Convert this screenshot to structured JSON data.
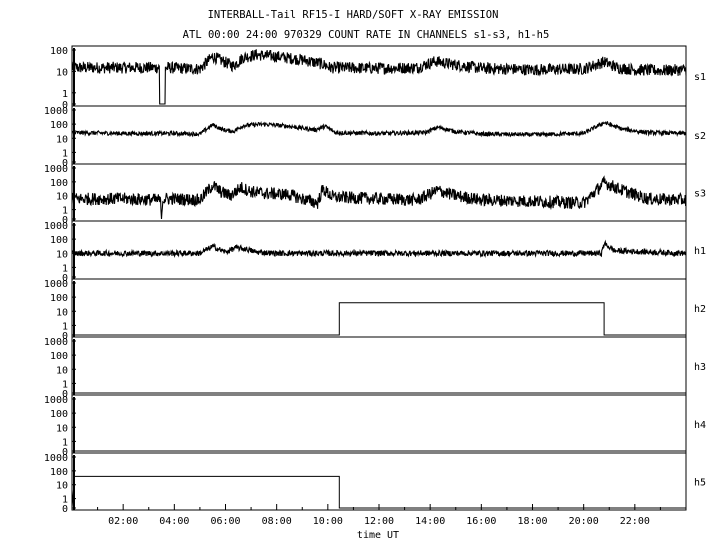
{
  "chart_data": {
    "type": "line",
    "title": "INTERBALL-Tail RF15-I HARD/SOFT X-RAY EMISSION",
    "subtitle": "ATL 00:00 24:00 970329  COUNT RATE IN CHANNELS s1-s3, h1-h5",
    "xlabel": "time UT",
    "xlim": [
      0,
      24
    ],
    "x_tick_labels": [
      "02:00",
      "04:00",
      "06:00",
      "08:00",
      "10:00",
      "12:00",
      "14:00",
      "16:00",
      "18:00",
      "20:00",
      "22:00"
    ],
    "x_ticks_hours": [
      2,
      4,
      6,
      8,
      10,
      12,
      14,
      16,
      18,
      20,
      22
    ],
    "y_scale": "log",
    "grid": false,
    "panels": [
      {
        "name": "s1",
        "y_tick_labels": [
          "100",
          "10",
          "1",
          "0"
        ],
        "ylim_decades": 2,
        "base": 15,
        "noise": 0.55,
        "points": [
          [
            0,
            15
          ],
          [
            3.4,
            15
          ],
          [
            3.45,
            0
          ],
          [
            3.62,
            0
          ],
          [
            3.65,
            15
          ],
          [
            5.0,
            13
          ],
          [
            5.5,
            50
          ],
          [
            5.9,
            30
          ],
          [
            6.3,
            18
          ],
          [
            6.7,
            45
          ],
          [
            7.2,
            60
          ],
          [
            8,
            50
          ],
          [
            9,
            35
          ],
          [
            9.8,
            22
          ],
          [
            10.1,
            15
          ],
          [
            12,
            14
          ],
          [
            13.5,
            15
          ],
          [
            14.2,
            30
          ],
          [
            14.8,
            22
          ],
          [
            16,
            14
          ],
          [
            18,
            12
          ],
          [
            20,
            13
          ],
          [
            20.8,
            28
          ],
          [
            21.3,
            15
          ],
          [
            22,
            12
          ],
          [
            23,
            11
          ],
          [
            24,
            12
          ]
        ]
      },
      {
        "name": "s2",
        "y_tick_labels": [
          "1000",
          "100",
          "10",
          "1",
          "0"
        ],
        "ylim_decades": 3,
        "base": 20,
        "noise": 0.3,
        "points": [
          [
            0,
            25
          ],
          [
            2,
            22
          ],
          [
            4,
            22
          ],
          [
            5,
            20
          ],
          [
            5.5,
            90
          ],
          [
            5.9,
            40
          ],
          [
            6.3,
            30
          ],
          [
            6.7,
            80
          ],
          [
            7.5,
            100
          ],
          [
            8.5,
            70
          ],
          [
            9.5,
            40
          ],
          [
            9.9,
            70
          ],
          [
            10.3,
            25
          ],
          [
            12,
            22
          ],
          [
            13.8,
            25
          ],
          [
            14.3,
            60
          ],
          [
            15,
            30
          ],
          [
            16,
            20
          ],
          [
            18,
            18
          ],
          [
            20,
            22
          ],
          [
            20.8,
            130
          ],
          [
            21.5,
            45
          ],
          [
            22.5,
            25
          ],
          [
            24,
            22
          ]
        ]
      },
      {
        "name": "s3",
        "y_tick_labels": [
          "1000",
          "100",
          "10",
          "1",
          "0"
        ],
        "ylim_decades": 3,
        "base": 6,
        "noise": 0.9,
        "points": [
          [
            0,
            6
          ],
          [
            2,
            6
          ],
          [
            3.45,
            5
          ],
          [
            3.5,
            0.2
          ],
          [
            3.55,
            6
          ],
          [
            4,
            6
          ],
          [
            5,
            5
          ],
          [
            5.5,
            60
          ],
          [
            5.8,
            20
          ],
          [
            6.2,
            10
          ],
          [
            6.6,
            40
          ],
          [
            7,
            20
          ],
          [
            7.5,
            15
          ],
          [
            8.5,
            12
          ],
          [
            9,
            6
          ],
          [
            9.6,
            3
          ],
          [
            9.8,
            30
          ],
          [
            10.2,
            8
          ],
          [
            12,
            6
          ],
          [
            13.5,
            5
          ],
          [
            14.3,
            25
          ],
          [
            15,
            10
          ],
          [
            16,
            5
          ],
          [
            18,
            4
          ],
          [
            20,
            3
          ],
          [
            20.8,
            90
          ],
          [
            21.5,
            25
          ],
          [
            22.5,
            6
          ],
          [
            24,
            5
          ]
        ]
      },
      {
        "name": "h1",
        "y_tick_labels": [
          "1000",
          "100",
          "10",
          "1",
          "0"
        ],
        "ylim_decades": 3,
        "base": 10,
        "noise": 0.4,
        "points": [
          [
            0,
            10
          ],
          [
            5,
            10
          ],
          [
            5.5,
            30
          ],
          [
            6,
            12
          ],
          [
            6.4,
            25
          ],
          [
            6.8,
            20
          ],
          [
            7.2,
            12
          ],
          [
            8,
            10
          ],
          [
            20.7,
            10
          ],
          [
            20.8,
            50
          ],
          [
            21.2,
            15
          ],
          [
            24,
            10
          ]
        ]
      },
      {
        "name": "h2",
        "y_tick_labels": [
          "1000",
          "100",
          "10",
          "1",
          "0"
        ],
        "ylim_decades": 3,
        "base": 0,
        "noise": 0,
        "points": [
          [
            0,
            0
          ],
          [
            10.45,
            0
          ],
          [
            10.45,
            40
          ],
          [
            20.8,
            40
          ],
          [
            20.8,
            0
          ],
          [
            24,
            0
          ]
        ]
      },
      {
        "name": "h3",
        "y_tick_labels": [
          "1000",
          "100",
          "10",
          "1",
          "0"
        ],
        "ylim_decades": 3,
        "base": 0,
        "noise": 0,
        "points": [
          [
            0,
            0
          ],
          [
            24,
            0
          ]
        ]
      },
      {
        "name": "h4",
        "y_tick_labels": [
          "1000",
          "100",
          "10",
          "1",
          "0"
        ],
        "ylim_decades": 3,
        "base": 0,
        "noise": 0,
        "points": [
          [
            0,
            0
          ],
          [
            24,
            0
          ]
        ]
      },
      {
        "name": "h5",
        "y_tick_labels": [
          "1000",
          "100",
          "10",
          "1",
          "0"
        ],
        "ylim_decades": 3,
        "base": 0,
        "noise": 0,
        "points": [
          [
            0,
            0
          ],
          [
            0.1,
            40
          ],
          [
            10.45,
            40
          ],
          [
            10.45,
            0
          ],
          [
            24,
            0
          ]
        ]
      }
    ]
  }
}
